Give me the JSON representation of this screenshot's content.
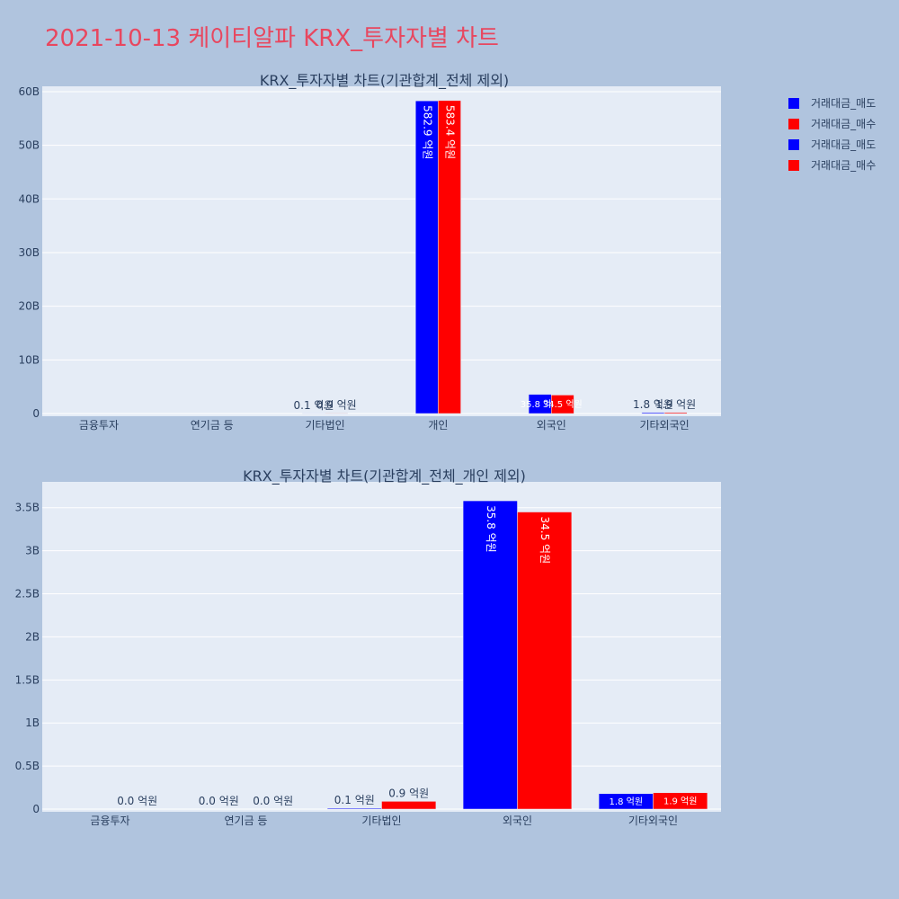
{
  "title": "2021-10-13 케이티알파 KRX_투자자별 차트",
  "legend": [
    {
      "name": "거래대금_매도",
      "color": "#0000ff"
    },
    {
      "name": "거래대금_매수",
      "color": "#ff0000"
    },
    {
      "name": "거래대금_매도",
      "color": "#0000ff"
    },
    {
      "name": "거래대금_매수",
      "color": "#ff0000"
    }
  ],
  "chart_data": [
    {
      "type": "bar",
      "title": "KRX_투자자별 차트(기관합계_전체 제외)",
      "categories": [
        "금융투자",
        "연기금 등",
        "기타법인",
        "개인",
        "외국인",
        "기타외국인"
      ],
      "series": [
        {
          "name": "거래대금_매도",
          "color": "#0000ff",
          "values": [
            0,
            0,
            10000000,
            58290000000,
            3580000000,
            180000000
          ],
          "labels": [
            "",
            "",
            "0.1 억원",
            "582.9 억원",
            "35.8 억원",
            "1.8 억원"
          ]
        },
        {
          "name": "거래대금_매수",
          "color": "#ff0000",
          "values": [
            0,
            0,
            90000000,
            58340000000,
            3450000000,
            190000000
          ],
          "labels": [
            "",
            "",
            "0.9 억원",
            "583.4 억원",
            "34.5 억원",
            "1.9 억원"
          ]
        }
      ],
      "ylim": [
        0,
        61000000000
      ],
      "yticks": [
        0,
        10000000000,
        20000000000,
        30000000000,
        40000000000,
        50000000000,
        60000000000
      ],
      "yticklabels": [
        "0",
        "10B",
        "20B",
        "30B",
        "40B",
        "50B",
        "60B"
      ]
    },
    {
      "type": "bar",
      "title": "KRX_투자자별 차트(기관합계_전체_개인 제외)",
      "categories": [
        "금융투자",
        "연기금 등",
        "기타법인",
        "외국인",
        "기타외국인"
      ],
      "series": [
        {
          "name": "거래대금_매도",
          "color": "#0000ff",
          "values": [
            0,
            0,
            10000000,
            3580000000,
            180000000
          ],
          "labels": [
            "",
            "0.0 억원",
            "0.1 억원",
            "35.8 억원",
            "1.8 억원"
          ]
        },
        {
          "name": "거래대금_매수",
          "color": "#ff0000",
          "values": [
            0,
            0,
            90000000,
            3450000000,
            190000000
          ],
          "labels": [
            "0.0 억원",
            "0.0 억원",
            "0.9 억원",
            "34.5 억원",
            "1.9 억원"
          ]
        }
      ],
      "ylim": [
        0,
        3800000000
      ],
      "yticks": [
        0,
        500000000,
        1000000000,
        1500000000,
        2000000000,
        2500000000,
        3000000000,
        3500000000
      ],
      "yticklabels": [
        "0",
        "0.5B",
        "1B",
        "1.5B",
        "2B",
        "2.5B",
        "3B",
        "3.5B"
      ]
    }
  ]
}
